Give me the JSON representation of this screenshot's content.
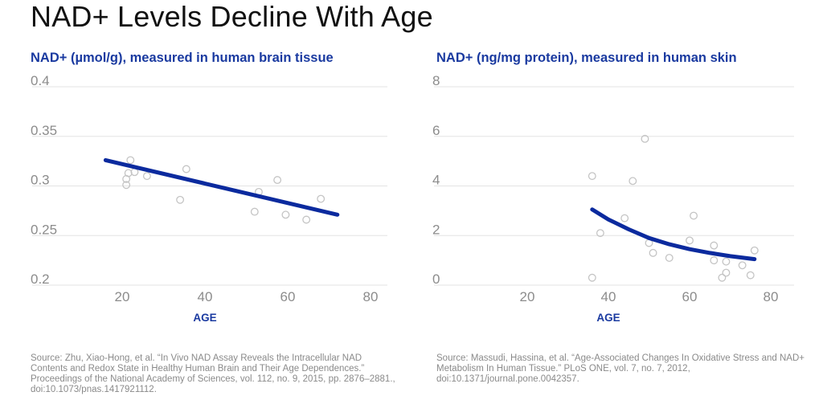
{
  "page": {
    "title": "NAD+ Levels Decline With Age"
  },
  "chart_data": [
    {
      "type": "scatter",
      "title": "NAD+ (µmol/g), measured in human brain tissue",
      "xlabel": "AGE",
      "ylabel": "",
      "xlim": [
        10,
        82
      ],
      "ylim": [
        0.19,
        0.4
      ],
      "x_ticks": [
        "20",
        "40",
        "60",
        "80"
      ],
      "y_ticks": [
        "0.2",
        "0.25",
        "0.3",
        "0.35",
        "0.4"
      ],
      "grid": true,
      "points": [
        {
          "x": 21,
          "y": 0.301
        },
        {
          "x": 21,
          "y": 0.307
        },
        {
          "x": 21.5,
          "y": 0.313
        },
        {
          "x": 22,
          "y": 0.326
        },
        {
          "x": 23,
          "y": 0.314
        },
        {
          "x": 26,
          "y": 0.31
        },
        {
          "x": 34,
          "y": 0.286
        },
        {
          "x": 35.5,
          "y": 0.317
        },
        {
          "x": 52,
          "y": 0.274
        },
        {
          "x": 53,
          "y": 0.294
        },
        {
          "x": 57.5,
          "y": 0.306
        },
        {
          "x": 59.5,
          "y": 0.271
        },
        {
          "x": 64.5,
          "y": 0.266
        },
        {
          "x": 68,
          "y": 0.287
        }
      ],
      "trend": [
        {
          "x": 16,
          "y": 0.326
        },
        {
          "x": 72,
          "y": 0.271
        }
      ],
      "source": "Source: Zhu, Xiao-Hong, et al. “In Vivo NAD Assay Reveals the Intracellular NAD Contents and Redox State in Healthy Human Brain and Their Age Dependences.” Proceedings of the National Academy of Sciences, vol. 112, no. 9, 2015, pp. 2876–2881., doi:10.1073/pnas.1417921112."
    },
    {
      "type": "scatter",
      "title": "NAD+ (ng/mg protein), measured in human skin",
      "xlabel": "AGE",
      "ylabel": "",
      "xlim": [
        10,
        82
      ],
      "ylim": [
        -0.4,
        8
      ],
      "x_ticks": [
        "20",
        "40",
        "60",
        "80"
      ],
      "y_ticks": [
        "0",
        "2",
        "4",
        "6",
        "8"
      ],
      "grid": true,
      "points": [
        {
          "x": 36,
          "y": 4.4
        },
        {
          "x": 36,
          "y": 0.3
        },
        {
          "x": 38,
          "y": 2.1
        },
        {
          "x": 44,
          "y": 2.7
        },
        {
          "x": 46,
          "y": 4.2
        },
        {
          "x": 49,
          "y": 5.9
        },
        {
          "x": 50,
          "y": 1.7
        },
        {
          "x": 51,
          "y": 1.3
        },
        {
          "x": 55,
          "y": 1.1
        },
        {
          "x": 60,
          "y": 1.8
        },
        {
          "x": 61,
          "y": 2.8
        },
        {
          "x": 66,
          "y": 1.6
        },
        {
          "x": 66,
          "y": 1.0
        },
        {
          "x": 68,
          "y": 0.3
        },
        {
          "x": 69,
          "y": 0.95
        },
        {
          "x": 69,
          "y": 0.5
        },
        {
          "x": 73,
          "y": 0.8
        },
        {
          "x": 75,
          "y": 0.4
        },
        {
          "x": 76,
          "y": 1.4
        }
      ],
      "trend": [
        {
          "x": 36,
          "y": 3.05
        },
        {
          "x": 40,
          "y": 2.65
        },
        {
          "x": 45,
          "y": 2.25
        },
        {
          "x": 50,
          "y": 1.9
        },
        {
          "x": 55,
          "y": 1.65
        },
        {
          "x": 60,
          "y": 1.45
        },
        {
          "x": 65,
          "y": 1.3
        },
        {
          "x": 70,
          "y": 1.17
        },
        {
          "x": 76,
          "y": 1.05
        }
      ],
      "source": "Source: Massudi, Hassina, et al. “Age-Associated Changes In Oxidative Stress and NAD+ Metabolism In Human Tissue.” PLoS ONE, vol. 7, no. 7, 2012, doi:10.1371/journal.pone.0042357."
    }
  ],
  "colors": {
    "trend": "#0b2a9e",
    "title_blue": "#1a3aa0",
    "grid": "#e3e3e3",
    "point": "#c4c4c4",
    "tick": "#8c8c8c"
  }
}
